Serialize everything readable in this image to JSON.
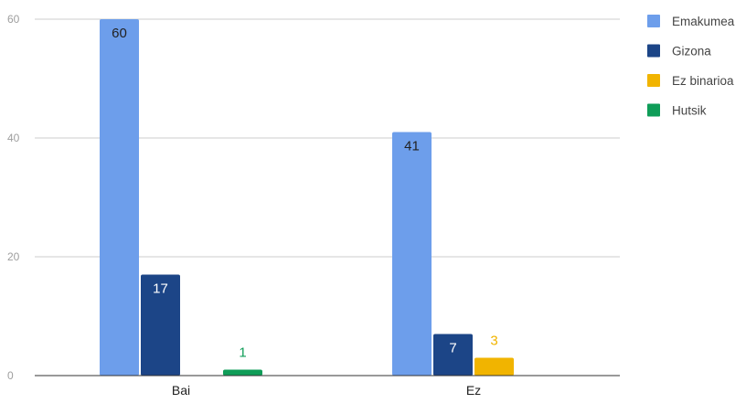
{
  "chart_data": {
    "type": "bar",
    "categories": [
      "Bai",
      "Ez"
    ],
    "series": [
      {
        "name": "Emakumea",
        "color": "#6d9eeb",
        "values": [
          60,
          41
        ],
        "label_color": "#222222"
      },
      {
        "name": "Gizona",
        "color": "#1c4587",
        "values": [
          17,
          7
        ],
        "label_color": "#ffffff"
      },
      {
        "name": "Ez binarioa",
        "color": "#f1b400",
        "values": [
          0,
          3
        ],
        "label_color": "#f1b400"
      },
      {
        "name": "Hutsik",
        "color": "#0f9d58",
        "values": [
          1,
          0
        ],
        "label_color": "#0f9d58"
      }
    ],
    "ylim": [
      0,
      60
    ],
    "yticks": [
      0,
      20,
      40,
      60
    ],
    "grid": true,
    "legend_position": "right",
    "title": "",
    "xlabel": "",
    "ylabel": ""
  }
}
